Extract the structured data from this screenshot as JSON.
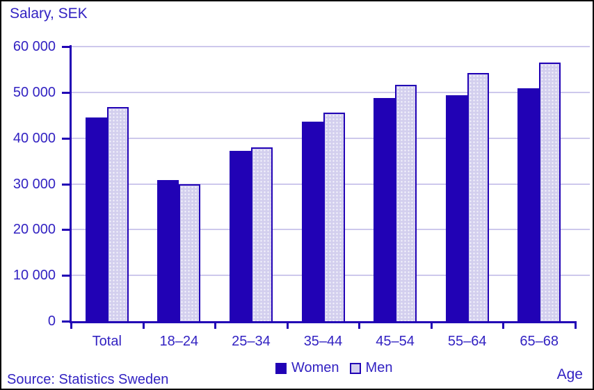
{
  "title": "Salary, SEK",
  "source": "Source: Statistics Sweden",
  "xaxis_title": "Age",
  "legend": {
    "women": "Women",
    "men": "Men"
  },
  "colors": {
    "text": "#3222c2",
    "axis": "#2102b5",
    "women_bar": "#2102b5",
    "men_bar_fill": "#d3cfee",
    "men_bar_border": "#2102b5",
    "gridline": "#cdc8ec",
    "background": "#ffffff",
    "frame_border": "#000000"
  },
  "chart_data": {
    "type": "bar",
    "title": "Salary, SEK",
    "xlabel": "Age",
    "ylabel": "Salary, SEK",
    "categories": [
      "Total",
      "18–24",
      "25–34",
      "35–44",
      "45–54",
      "55–64",
      "65–68"
    ],
    "series": [
      {
        "name": "Women",
        "values": [
          44500,
          30900,
          37200,
          43600,
          48700,
          49300,
          50900
        ]
      },
      {
        "name": "Men",
        "values": [
          46800,
          29900,
          37900,
          45500,
          51700,
          54300,
          56500
        ]
      }
    ],
    "ylim": [
      0,
      60000
    ],
    "ytick_step": 10000,
    "ytick_labels": [
      "0",
      "10 000",
      "20 000",
      "30 000",
      "40 000",
      "50 000",
      "60 000"
    ],
    "grid": true,
    "legend_position": "bottom-center"
  }
}
